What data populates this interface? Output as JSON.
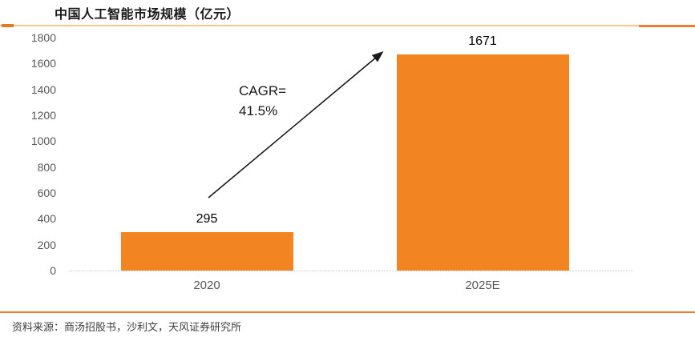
{
  "title": "中国人工智能市场规模（亿元）",
  "source": "资料来源：商汤招股书，沙利文，天风证券研究所",
  "colors": {
    "bar": "#f28422",
    "accent_dark": "#e87722",
    "accent_bright": "#ed7d31",
    "accent_light": "#f9c48f",
    "axis_text": "#595959",
    "baseline": "#c9c9c9",
    "label_text": "#000000"
  },
  "chart_data": {
    "type": "bar",
    "categories": [
      "2020",
      "2025E"
    ],
    "values": [
      295,
      1671
    ],
    "data_labels": [
      "295",
      "1671"
    ],
    "title": "中国人工智能市场规模（亿元）",
    "xlabel": "",
    "ylabel": "",
    "ylim": [
      0,
      1800
    ],
    "ytick_step": 200,
    "ytick_labels": [
      "0",
      "200",
      "400",
      "600",
      "800",
      "1000",
      "1200",
      "1400",
      "1600",
      "1800"
    ],
    "bar_color": "#f28422",
    "grid": false,
    "legend": false,
    "annotation": [
      "CAGR=",
      "41.5%"
    ]
  }
}
